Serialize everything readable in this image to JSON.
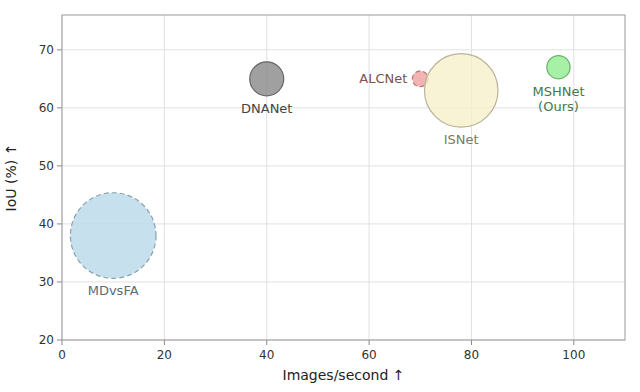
{
  "chart_data": {
    "type": "bubble",
    "xlabel": "Images/second ↑",
    "ylabel": "IoU (%) ↑",
    "xlim": [
      0,
      110
    ],
    "ylim": [
      20,
      76
    ],
    "xticks": [
      0,
      20,
      40,
      60,
      80,
      100
    ],
    "yticks": [
      20,
      30,
      40,
      50,
      60,
      70
    ],
    "grid": true,
    "series": [
      {
        "name": "MDvsFA",
        "color": "#b8d8e8",
        "line_style": "dashed",
        "x": [
          10
        ],
        "values": [
          38
        ],
        "sizes": [
          3800
        ]
      },
      {
        "name": "DNANet",
        "color": "#888888",
        "line_style": "solid",
        "x": [
          40
        ],
        "values": [
          65
        ],
        "sizes": [
          600
        ]
      },
      {
        "name": "ALCNet",
        "color": "#f0a0a0",
        "line_style": "dashed",
        "x": [
          70
        ],
        "values": [
          65
        ],
        "sizes": [
          130
        ]
      },
      {
        "name": "ISNet",
        "color": "#f7f0cc",
        "line_style": "solid",
        "x": [
          78
        ],
        "values": [
          63
        ],
        "sizes": [
          2800
        ]
      },
      {
        "name": "MSHNet\n(Ours)",
        "color": "#90ee90",
        "line_style": "solid",
        "x": [
          97
        ],
        "values": [
          67
        ],
        "sizes": [
          280
        ]
      }
    ]
  }
}
